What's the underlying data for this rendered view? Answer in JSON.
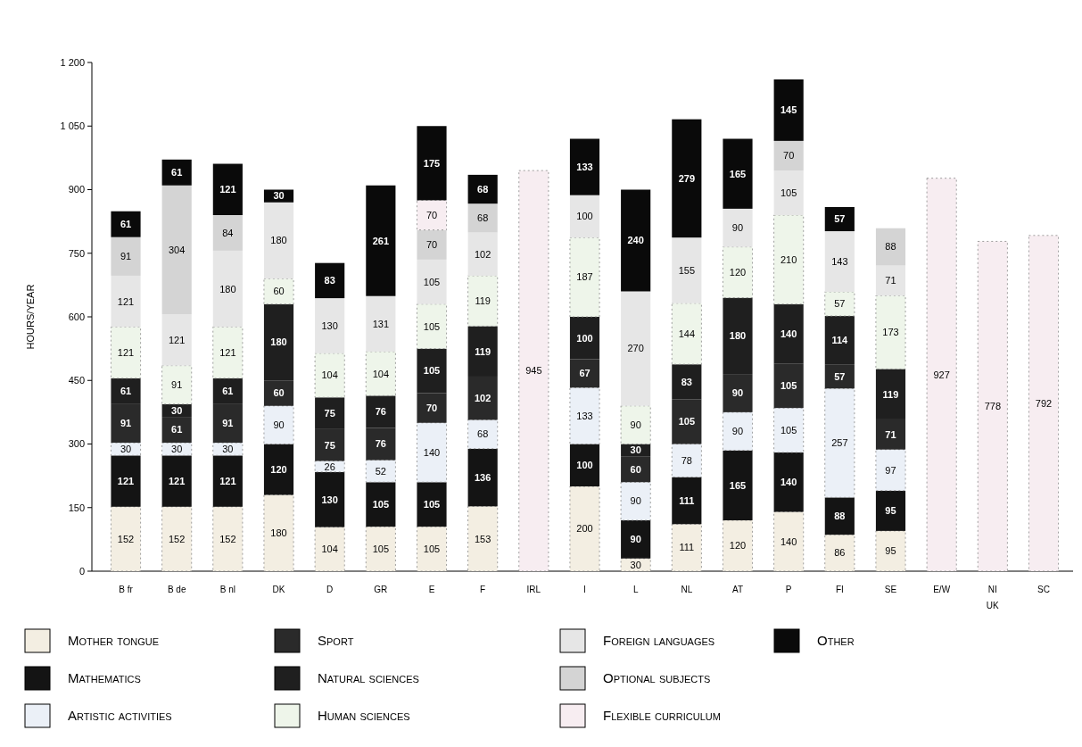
{
  "chart_data": {
    "type": "bar",
    "stacked": true,
    "ylabel": "HOURS/YEAR",
    "categories": [
      "B fr",
      "B de",
      "B nl",
      "DK",
      "D",
      "GR",
      "E",
      "F",
      "IRL",
      "I",
      "L",
      "NL",
      "AT",
      "P",
      "FI",
      "SE",
      "E/W",
      "NI",
      "SC"
    ],
    "series": [
      {
        "name": "Mother tongue",
        "color": "#f3eee2",
        "values": [
          152,
          152,
          152,
          180,
          104,
          105,
          105,
          153,
          null,
          200,
          30,
          111,
          120,
          140,
          86,
          95,
          null,
          null,
          null
        ]
      },
      {
        "name": "Mathematics",
        "color": "#141414",
        "values": [
          121,
          121,
          121,
          120,
          130,
          105,
          105,
          136,
          null,
          100,
          90,
          111,
          165,
          140,
          88,
          95,
          null,
          null,
          null
        ]
      },
      {
        "name": "Artistic activities",
        "color": "#ebf0f7",
        "values": [
          30,
          30,
          30,
          90,
          26,
          52,
          140,
          68,
          null,
          133,
          90,
          78,
          90,
          105,
          257,
          97,
          null,
          null,
          null
        ]
      },
      {
        "name": "Sport",
        "color": "#2a2a2a",
        "values": [
          91,
          61,
          91,
          60,
          75,
          76,
          70,
          102,
          null,
          67,
          60,
          105,
          90,
          105,
          57,
          71,
          null,
          null,
          null
        ]
      },
      {
        "name": "Natural sciences",
        "color": "#1f1f1f",
        "values": [
          61,
          30,
          61,
          180,
          75,
          76,
          105,
          119,
          null,
          100,
          30,
          83,
          180,
          140,
          114,
          119,
          null,
          null,
          null
        ]
      },
      {
        "name": "Human sciences",
        "color": "#eef5ea",
        "values": [
          121,
          91,
          121,
          60,
          104,
          104,
          105,
          119,
          null,
          187,
          90,
          144,
          120,
          210,
          57,
          173,
          null,
          null,
          null
        ]
      },
      {
        "name": "Foreign languages",
        "color": "#e6e6e6",
        "values": [
          121,
          121,
          180,
          180,
          130,
          131,
          105,
          102,
          null,
          100,
          270,
          155,
          90,
          105,
          143,
          71,
          null,
          null,
          null
        ]
      },
      {
        "name": "Optional subjects",
        "color": "#d4d4d4",
        "values": [
          91,
          304,
          84,
          null,
          null,
          null,
          70,
          68,
          null,
          null,
          null,
          null,
          null,
          70,
          null,
          88,
          null,
          null,
          null
        ]
      },
      {
        "name": "Flexible curriculum",
        "color": "#f7edf1",
        "values": [
          null,
          null,
          null,
          null,
          null,
          null,
          70,
          null,
          945,
          null,
          null,
          null,
          null,
          null,
          null,
          null,
          927,
          778,
          792
        ]
      },
      {
        "name": "Other",
        "color": "#0a0a0a",
        "values": [
          61,
          61,
          121,
          30,
          83,
          261,
          175,
          68,
          null,
          133,
          240,
          279,
          165,
          145,
          57,
          null,
          null,
          null,
          null
        ]
      }
    ],
    "ylim": [
      0,
      1200
    ],
    "yticks": [
      0,
      150,
      300,
      450,
      600,
      750,
      900,
      {
        "value": 1050,
        "label": "1 050"
      },
      {
        "value": 1200,
        "label": "1 200"
      }
    ],
    "data_labels": true,
    "legend": "bottom",
    "grid": false,
    "annotations": [
      "UK"
    ]
  }
}
